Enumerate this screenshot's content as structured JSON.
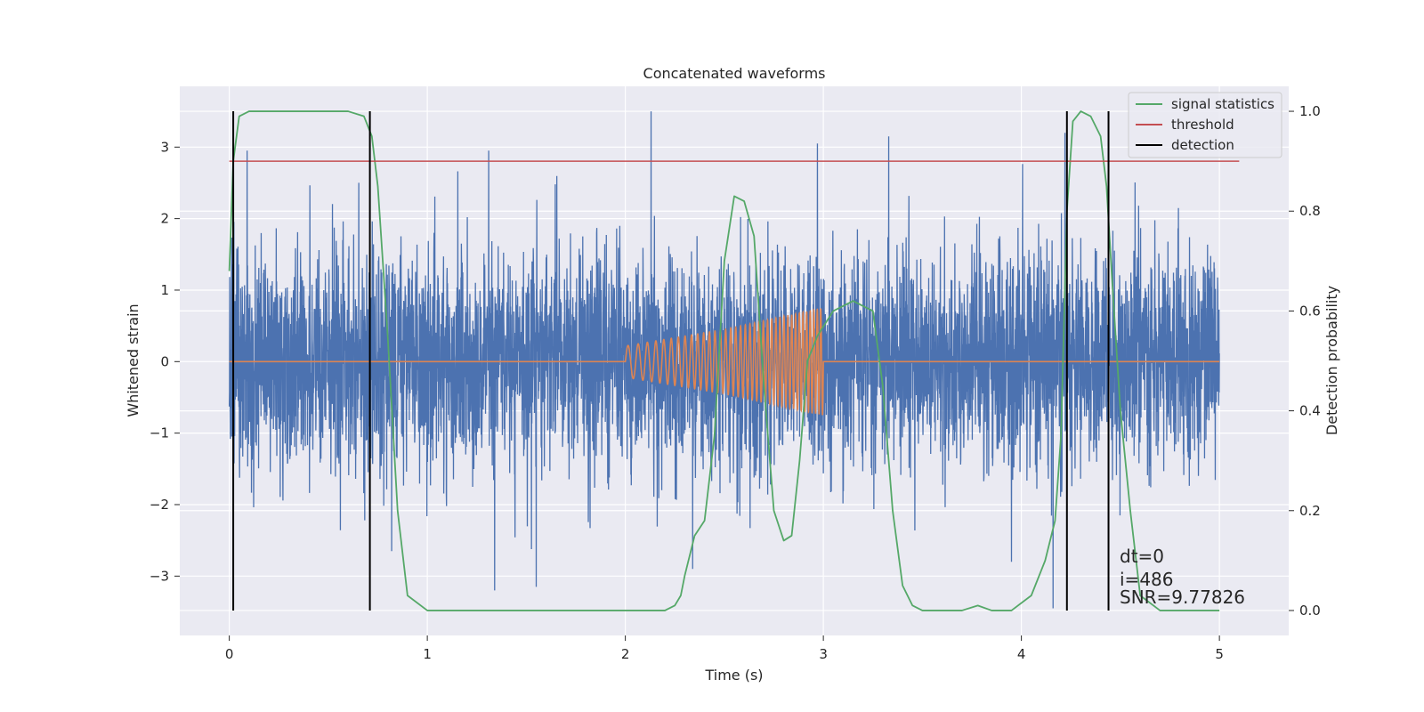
{
  "chart_data": {
    "type": "line",
    "title": "Concatenated waveforms",
    "xlabel": "Time (s)",
    "ylabel": "Whitened strain",
    "ylabel_right": "Detection probability",
    "xlim": [
      -0.25,
      5.35
    ],
    "ylim": [
      -3.83,
      3.85
    ],
    "ylim_right": [
      -0.05,
      1.05
    ],
    "x_ticks": [
      0,
      1,
      2,
      3,
      4,
      5
    ],
    "y_ticks": [
      -3,
      -2,
      -1,
      0,
      1,
      2,
      3
    ],
    "y_ticks_right": [
      0.0,
      0.2,
      0.4,
      0.6,
      0.8,
      1.0
    ],
    "grid": true,
    "legend_position": "top-right",
    "legend": [
      {
        "label": "signal statistics",
        "color": "#55a868"
      },
      {
        "label": "threshold",
        "color": "#c44e52"
      },
      {
        "label": "detection",
        "color": "#000000"
      }
    ],
    "series": [
      {
        "kind": "noise",
        "axis": "left",
        "color": "#4c72b0",
        "x_range": [
          0,
          5
        ],
        "min": -3.45,
        "max": 3.5,
        "typical_amplitude": 0.75,
        "peaks": [
          {
            "x": 0.09,
            "y": 2.95
          },
          {
            "x": 1.31,
            "y": 2.95
          },
          {
            "x": 2.13,
            "y": 3.5
          },
          {
            "x": 2.97,
            "y": 3.05
          },
          {
            "x": 3.33,
            "y": 3.15
          },
          {
            "x": 4.22,
            "y": 3.2
          },
          {
            "x": 1.34,
            "y": -3.2
          },
          {
            "x": 1.55,
            "y": -3.15
          },
          {
            "x": 4.16,
            "y": -3.45
          },
          {
            "x": 2.34,
            "y": -2.9
          },
          {
            "x": 0.82,
            "y": -2.65
          },
          {
            "x": 3.95,
            "y": -2.8
          }
        ]
      },
      {
        "kind": "chirp",
        "axis": "left",
        "color": "#dd8452",
        "x": [
          0,
          2,
          2.5,
          3,
          5
        ],
        "amplitude": [
          0,
          0.22,
          0.45,
          0.75,
          0
        ],
        "signal_window": [
          2,
          3
        ]
      },
      {
        "name": "signal statistics",
        "axis": "right",
        "color": "#55a868",
        "x": [
          0,
          0.02,
          0.05,
          0.1,
          0.2,
          0.6,
          0.68,
          0.72,
          0.75,
          0.8,
          0.85,
          0.9,
          1.0,
          1.5,
          1.7,
          2.0,
          2.2,
          2.25,
          2.28,
          2.3,
          2.35,
          2.4,
          2.45,
          2.5,
          2.55,
          2.6,
          2.65,
          2.7,
          2.75,
          2.8,
          2.84,
          2.88,
          2.92,
          2.97,
          3.05,
          3.15,
          3.25,
          3.3,
          3.35,
          3.4,
          3.45,
          3.5,
          3.7,
          3.78,
          3.85,
          3.95,
          4.05,
          4.12,
          4.17,
          4.2,
          4.23,
          4.26,
          4.3,
          4.35,
          4.4,
          4.43,
          4.46,
          4.5,
          4.55,
          4.6,
          4.7,
          5.0
        ],
        "y": [
          0.68,
          0.9,
          0.99,
          1.0,
          1.0,
          1.0,
          0.99,
          0.95,
          0.85,
          0.55,
          0.2,
          0.03,
          0.0,
          0.0,
          0.0,
          0.0,
          0.0,
          0.01,
          0.03,
          0.07,
          0.15,
          0.18,
          0.35,
          0.7,
          0.83,
          0.82,
          0.75,
          0.45,
          0.2,
          0.14,
          0.15,
          0.3,
          0.5,
          0.55,
          0.6,
          0.62,
          0.6,
          0.45,
          0.2,
          0.05,
          0.01,
          0.0,
          0.0,
          0.01,
          0.0,
          0.0,
          0.03,
          0.1,
          0.18,
          0.35,
          0.8,
          0.98,
          1.0,
          0.99,
          0.95,
          0.85,
          0.65,
          0.4,
          0.2,
          0.03,
          0.0,
          0.0
        ]
      },
      {
        "name": "threshold",
        "axis": "right",
        "color": "#c44e52",
        "x": [
          0,
          5.1
        ],
        "y": [
          0.9,
          0.9
        ]
      }
    ],
    "detections": [
      0.02,
      0.71,
      4.23,
      4.44
    ],
    "annotations": [
      "dt=0",
      "i=486",
      "SNR=9.77826"
    ]
  }
}
